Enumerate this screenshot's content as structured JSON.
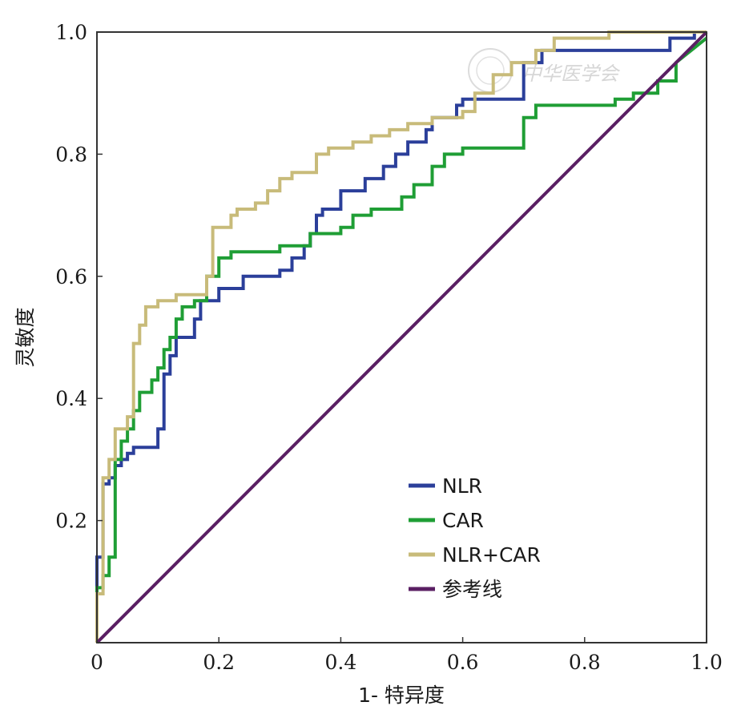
{
  "chart_data": {
    "type": "line",
    "xlabel": "1- 特异度",
    "ylabel": "灵敏度",
    "xlim": [
      0,
      1
    ],
    "ylim": [
      0,
      1
    ],
    "x_ticks": [
      "0",
      "0.2",
      "0.4",
      "0.6",
      "0.8",
      "1.0"
    ],
    "y_ticks": [
      "0.2",
      "0.4",
      "0.6",
      "0.8",
      "1.0"
    ],
    "grid": false,
    "legend_position": "bottom-center",
    "watermark": "中华医学会",
    "series": [
      {
        "name": "NLR",
        "color": "#2b3f9a",
        "points": [
          [
            0,
            0
          ],
          [
            0,
            0.14
          ],
          [
            0.01,
            0.14
          ],
          [
            0.01,
            0.26
          ],
          [
            0.02,
            0.26
          ],
          [
            0.02,
            0.27
          ],
          [
            0.03,
            0.27
          ],
          [
            0.03,
            0.29
          ],
          [
            0.04,
            0.29
          ],
          [
            0.04,
            0.3
          ],
          [
            0.05,
            0.3
          ],
          [
            0.05,
            0.31
          ],
          [
            0.06,
            0.31
          ],
          [
            0.06,
            0.32
          ],
          [
            0.1,
            0.32
          ],
          [
            0.1,
            0.35
          ],
          [
            0.11,
            0.35
          ],
          [
            0.11,
            0.44
          ],
          [
            0.12,
            0.44
          ],
          [
            0.12,
            0.47
          ],
          [
            0.13,
            0.47
          ],
          [
            0.13,
            0.5
          ],
          [
            0.16,
            0.5
          ],
          [
            0.16,
            0.53
          ],
          [
            0.17,
            0.53
          ],
          [
            0.17,
            0.56
          ],
          [
            0.2,
            0.56
          ],
          [
            0.2,
            0.58
          ],
          [
            0.24,
            0.58
          ],
          [
            0.24,
            0.6
          ],
          [
            0.3,
            0.6
          ],
          [
            0.3,
            0.61
          ],
          [
            0.32,
            0.61
          ],
          [
            0.32,
            0.63
          ],
          [
            0.34,
            0.63
          ],
          [
            0.34,
            0.65
          ],
          [
            0.35,
            0.65
          ],
          [
            0.35,
            0.67
          ],
          [
            0.36,
            0.67
          ],
          [
            0.36,
            0.7
          ],
          [
            0.37,
            0.7
          ],
          [
            0.37,
            0.71
          ],
          [
            0.4,
            0.71
          ],
          [
            0.4,
            0.74
          ],
          [
            0.44,
            0.74
          ],
          [
            0.44,
            0.76
          ],
          [
            0.47,
            0.76
          ],
          [
            0.47,
            0.78
          ],
          [
            0.49,
            0.78
          ],
          [
            0.49,
            0.8
          ],
          [
            0.51,
            0.8
          ],
          [
            0.51,
            0.82
          ],
          [
            0.54,
            0.82
          ],
          [
            0.54,
            0.84
          ],
          [
            0.55,
            0.84
          ],
          [
            0.55,
            0.86
          ],
          [
            0.59,
            0.86
          ],
          [
            0.59,
            0.88
          ],
          [
            0.6,
            0.88
          ],
          [
            0.6,
            0.89
          ],
          [
            0.7,
            0.89
          ],
          [
            0.7,
            0.95
          ],
          [
            0.73,
            0.95
          ],
          [
            0.73,
            0.97
          ],
          [
            0.94,
            0.97
          ],
          [
            0.94,
            0.99
          ],
          [
            0.98,
            0.99
          ],
          [
            0.98,
            1.0
          ],
          [
            1.0,
            1.0
          ]
        ]
      },
      {
        "name": "CAR",
        "color": "#1f9e35",
        "points": [
          [
            0,
            0
          ],
          [
            0,
            0.09
          ],
          [
            0.01,
            0.09
          ],
          [
            0.01,
            0.11
          ],
          [
            0.02,
            0.11
          ],
          [
            0.02,
            0.14
          ],
          [
            0.03,
            0.14
          ],
          [
            0.03,
            0.3
          ],
          [
            0.04,
            0.3
          ],
          [
            0.04,
            0.33
          ],
          [
            0.05,
            0.33
          ],
          [
            0.05,
            0.35
          ],
          [
            0.06,
            0.35
          ],
          [
            0.06,
            0.38
          ],
          [
            0.07,
            0.38
          ],
          [
            0.07,
            0.41
          ],
          [
            0.09,
            0.41
          ],
          [
            0.09,
            0.43
          ],
          [
            0.1,
            0.43
          ],
          [
            0.1,
            0.45
          ],
          [
            0.11,
            0.45
          ],
          [
            0.11,
            0.48
          ],
          [
            0.12,
            0.48
          ],
          [
            0.12,
            0.5
          ],
          [
            0.13,
            0.5
          ],
          [
            0.13,
            0.53
          ],
          [
            0.14,
            0.53
          ],
          [
            0.14,
            0.55
          ],
          [
            0.16,
            0.55
          ],
          [
            0.16,
            0.56
          ],
          [
            0.18,
            0.56
          ],
          [
            0.18,
            0.6
          ],
          [
            0.2,
            0.6
          ],
          [
            0.2,
            0.63
          ],
          [
            0.22,
            0.63
          ],
          [
            0.22,
            0.64
          ],
          [
            0.3,
            0.64
          ],
          [
            0.3,
            0.65
          ],
          [
            0.35,
            0.65
          ],
          [
            0.35,
            0.67
          ],
          [
            0.4,
            0.67
          ],
          [
            0.4,
            0.68
          ],
          [
            0.42,
            0.68
          ],
          [
            0.42,
            0.7
          ],
          [
            0.45,
            0.7
          ],
          [
            0.45,
            0.71
          ],
          [
            0.5,
            0.71
          ],
          [
            0.5,
            0.73
          ],
          [
            0.52,
            0.73
          ],
          [
            0.52,
            0.75
          ],
          [
            0.55,
            0.75
          ],
          [
            0.55,
            0.78
          ],
          [
            0.57,
            0.78
          ],
          [
            0.57,
            0.8
          ],
          [
            0.6,
            0.8
          ],
          [
            0.6,
            0.81
          ],
          [
            0.7,
            0.81
          ],
          [
            0.7,
            0.86
          ],
          [
            0.72,
            0.86
          ],
          [
            0.72,
            0.88
          ],
          [
            0.85,
            0.88
          ],
          [
            0.85,
            0.89
          ],
          [
            0.88,
            0.89
          ],
          [
            0.88,
            0.9
          ],
          [
            0.92,
            0.9
          ],
          [
            0.92,
            0.92
          ],
          [
            0.95,
            0.92
          ],
          [
            0.95,
            0.95
          ],
          [
            1.0,
            0.99
          ]
        ]
      },
      {
        "name": "NLR+CAR",
        "color": "#c8bb7a",
        "points": [
          [
            0,
            0
          ],
          [
            0,
            0.08
          ],
          [
            0.01,
            0.08
          ],
          [
            0.01,
            0.27
          ],
          [
            0.02,
            0.27
          ],
          [
            0.02,
            0.3
          ],
          [
            0.03,
            0.3
          ],
          [
            0.03,
            0.35
          ],
          [
            0.05,
            0.35
          ],
          [
            0.05,
            0.37
          ],
          [
            0.06,
            0.37
          ],
          [
            0.06,
            0.49
          ],
          [
            0.07,
            0.49
          ],
          [
            0.07,
            0.52
          ],
          [
            0.08,
            0.52
          ],
          [
            0.08,
            0.55
          ],
          [
            0.1,
            0.55
          ],
          [
            0.1,
            0.56
          ],
          [
            0.13,
            0.56
          ],
          [
            0.13,
            0.57
          ],
          [
            0.18,
            0.57
          ],
          [
            0.18,
            0.6
          ],
          [
            0.19,
            0.6
          ],
          [
            0.19,
            0.68
          ],
          [
            0.22,
            0.68
          ],
          [
            0.22,
            0.7
          ],
          [
            0.23,
            0.7
          ],
          [
            0.23,
            0.71
          ],
          [
            0.26,
            0.71
          ],
          [
            0.26,
            0.72
          ],
          [
            0.28,
            0.72
          ],
          [
            0.28,
            0.74
          ],
          [
            0.3,
            0.74
          ],
          [
            0.3,
            0.76
          ],
          [
            0.32,
            0.76
          ],
          [
            0.32,
            0.77
          ],
          [
            0.36,
            0.77
          ],
          [
            0.36,
            0.8
          ],
          [
            0.38,
            0.8
          ],
          [
            0.38,
            0.81
          ],
          [
            0.42,
            0.81
          ],
          [
            0.42,
            0.82
          ],
          [
            0.45,
            0.82
          ],
          [
            0.45,
            0.83
          ],
          [
            0.48,
            0.83
          ],
          [
            0.48,
            0.84
          ],
          [
            0.51,
            0.84
          ],
          [
            0.51,
            0.85
          ],
          [
            0.55,
            0.85
          ],
          [
            0.55,
            0.86
          ],
          [
            0.6,
            0.86
          ],
          [
            0.6,
            0.87
          ],
          [
            0.62,
            0.87
          ],
          [
            0.62,
            0.9
          ],
          [
            0.65,
            0.9
          ],
          [
            0.65,
            0.93
          ],
          [
            0.68,
            0.93
          ],
          [
            0.68,
            0.95
          ],
          [
            0.72,
            0.95
          ],
          [
            0.72,
            0.97
          ],
          [
            0.75,
            0.97
          ],
          [
            0.75,
            0.99
          ],
          [
            0.84,
            0.99
          ],
          [
            0.84,
            1.0
          ],
          [
            1.0,
            1.0
          ]
        ]
      },
      {
        "name": "参考线",
        "color": "#5a1f63",
        "points": [
          [
            0,
            0
          ],
          [
            1,
            1
          ]
        ]
      }
    ]
  }
}
